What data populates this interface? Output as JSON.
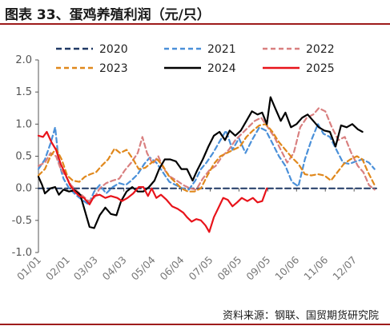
{
  "header": {
    "title": "图表 33、蛋鸡养殖利润（元/只）"
  },
  "footer": {
    "source": "资料来源：钢联、国贸期货研究院"
  },
  "chart_data": {
    "type": "line",
    "title": "图表 33、蛋鸡养殖利润（元/只）",
    "xlabel": "",
    "ylabel": "",
    "ylim": [
      -1.0,
      2.0
    ],
    "yticks": [
      "-1.0",
      "-0.5",
      "0.0",
      "0.5",
      "1.0",
      "1.5",
      "2.0"
    ],
    "xticks": [
      "01/01",
      "02/01",
      "03/03",
      "04/03",
      "05/04",
      "06/04",
      "07/05",
      "08/05",
      "09/05",
      "10/06",
      "11/06",
      "12/07"
    ],
    "xtick_positions": [
      0,
      31,
      61,
      92,
      123,
      154,
      185,
      216,
      247,
      278,
      309,
      340
    ],
    "x_max": 364,
    "grid": false,
    "legend_position": "top",
    "series": [
      {
        "name": "2020",
        "color": "#1f3864",
        "dash": "7,4",
        "points": [
          [
            0,
            0
          ],
          [
            364,
            0
          ]
        ]
      },
      {
        "name": "2021",
        "color": "#4a90d9",
        "dash": "6,4",
        "points": [
          [
            0,
            0.3
          ],
          [
            7,
            0.45
          ],
          [
            13,
            0.7
          ],
          [
            18,
            0.95
          ],
          [
            22,
            0.4
          ],
          [
            27,
            0.15
          ],
          [
            33,
            0.0
          ],
          [
            40,
            -0.1
          ],
          [
            47,
            -0.18
          ],
          [
            54,
            -0.25
          ],
          [
            60,
            -0.05
          ],
          [
            66,
            0.05
          ],
          [
            73,
            -0.08
          ],
          [
            80,
            0.02
          ],
          [
            87,
            0.08
          ],
          [
            94,
            0.05
          ],
          [
            100,
            0.12
          ],
          [
            107,
            0.22
          ],
          [
            114,
            0.38
          ],
          [
            120,
            0.48
          ],
          [
            127,
            0.4
          ],
          [
            134,
            0.25
          ],
          [
            141,
            0.1
          ],
          [
            148,
            0.05
          ],
          [
            155,
            0.0
          ],
          [
            162,
            -0.02
          ],
          [
            169,
            0.12
          ],
          [
            175,
            0.3
          ],
          [
            181,
            0.4
          ],
          [
            188,
            0.55
          ],
          [
            196,
            0.75
          ],
          [
            202,
            0.9
          ],
          [
            209,
            0.6
          ],
          [
            216,
            0.78
          ],
          [
            223,
            0.55
          ],
          [
            230,
            0.75
          ],
          [
            238,
            0.95
          ],
          [
            245,
            0.9
          ],
          [
            252,
            0.7
          ],
          [
            259,
            0.5
          ],
          [
            266,
            0.35
          ],
          [
            273,
            0.1
          ],
          [
            280,
            0.03
          ],
          [
            287,
            0.45
          ],
          [
            294,
            0.75
          ],
          [
            301,
            1.0
          ],
          [
            307,
            0.85
          ],
          [
            314,
            0.8
          ],
          [
            321,
            0.6
          ],
          [
            328,
            0.4
          ],
          [
            335,
            0.38
          ],
          [
            342,
            0.42
          ],
          [
            349,
            0.45
          ],
          [
            356,
            0.4
          ],
          [
            362,
            0.3
          ]
        ]
      },
      {
        "name": "2022",
        "color": "#d98080",
        "dash": "6,4",
        "points": [
          [
            0,
            0.35
          ],
          [
            7,
            0.4
          ],
          [
            13,
            0.55
          ],
          [
            19,
            0.5
          ],
          [
            24,
            0.3
          ],
          [
            29,
            0.2
          ],
          [
            35,
            0.05
          ],
          [
            42,
            -0.05
          ],
          [
            48,
            -0.12
          ],
          [
            54,
            -0.2
          ],
          [
            60,
            -0.15
          ],
          [
            66,
            0.0
          ],
          [
            73,
            0.08
          ],
          [
            80,
            0.12
          ],
          [
            87,
            0.15
          ],
          [
            93,
            0.28
          ],
          [
            100,
            0.4
          ],
          [
            107,
            0.55
          ],
          [
            112,
            0.8
          ],
          [
            117,
            0.55
          ],
          [
            123,
            0.38
          ],
          [
            129,
            0.5
          ],
          [
            135,
            0.3
          ],
          [
            142,
            0.18
          ],
          [
            149,
            0.12
          ],
          [
            156,
            0.05
          ],
          [
            163,
            0.0
          ],
          [
            170,
            -0.02
          ],
          [
            177,
            0.15
          ],
          [
            184,
            0.28
          ],
          [
            191,
            0.35
          ],
          [
            198,
            0.5
          ],
          [
            205,
            0.6
          ],
          [
            212,
            0.75
          ],
          [
            219,
            0.85
          ],
          [
            226,
            0.95
          ],
          [
            233,
            1.05
          ],
          [
            240,
            1.1
          ],
          [
            247,
            0.95
          ],
          [
            254,
            0.8
          ],
          [
            261,
            0.6
          ],
          [
            268,
            0.4
          ],
          [
            275,
            0.55
          ],
          [
            282,
            0.95
          ],
          [
            289,
            1.1
          ],
          [
            296,
            1.15
          ],
          [
            302,
            1.25
          ],
          [
            309,
            1.2
          ],
          [
            316,
            0.95
          ],
          [
            323,
            0.75
          ],
          [
            330,
            0.8
          ],
          [
            337,
            0.55
          ],
          [
            344,
            0.35
          ],
          [
            350,
            0.25
          ],
          [
            356,
            0.05
          ],
          [
            362,
            -0.02
          ]
        ]
      },
      {
        "name": "2023",
        "color": "#e0881c",
        "dash": "6,4",
        "points": [
          [
            0,
            0.2
          ],
          [
            7,
            0.3
          ],
          [
            13,
            0.5
          ],
          [
            19,
            0.62
          ],
          [
            25,
            0.45
          ],
          [
            31,
            0.2
          ],
          [
            37,
            0.12
          ],
          [
            44,
            0.1
          ],
          [
            50,
            0.18
          ],
          [
            56,
            0.22
          ],
          [
            62,
            0.25
          ],
          [
            68,
            0.35
          ],
          [
            75,
            0.45
          ],
          [
            82,
            0.62
          ],
          [
            88,
            0.55
          ],
          [
            95,
            0.6
          ],
          [
            102,
            0.45
          ],
          [
            108,
            0.3
          ],
          [
            115,
            0.32
          ],
          [
            122,
            0.4
          ],
          [
            128,
            0.45
          ],
          [
            134,
            0.35
          ],
          [
            140,
            0.2
          ],
          [
            147,
            0.1
          ],
          [
            154,
            0.0
          ],
          [
            161,
            -0.05
          ],
          [
            168,
            -0.05
          ],
          [
            175,
            0.0
          ],
          [
            182,
            0.2
          ],
          [
            189,
            0.38
          ],
          [
            196,
            0.5
          ],
          [
            203,
            0.55
          ],
          [
            210,
            0.6
          ],
          [
            217,
            0.65
          ],
          [
            224,
            0.8
          ],
          [
            231,
            0.9
          ],
          [
            238,
            0.98
          ],
          [
            245,
            1.0
          ],
          [
            252,
            0.88
          ],
          [
            259,
            0.72
          ],
          [
            266,
            0.6
          ],
          [
            273,
            0.48
          ],
          [
            280,
            0.38
          ],
          [
            287,
            0.22
          ],
          [
            294,
            0.2
          ],
          [
            301,
            0.22
          ],
          [
            308,
            0.2
          ],
          [
            315,
            0.12
          ],
          [
            322,
            0.25
          ],
          [
            329,
            0.38
          ],
          [
            336,
            0.45
          ],
          [
            343,
            0.5
          ],
          [
            349,
            0.45
          ],
          [
            355,
            0.25
          ],
          [
            362,
            0.05
          ]
        ]
      },
      {
        "name": "2024",
        "color": "#000000",
        "dash": "",
        "points": [
          [
            0,
            0.18
          ],
          [
            4,
            0.05
          ],
          [
            7,
            -0.08
          ],
          [
            13,
            0.0
          ],
          [
            18,
            0.02
          ],
          [
            22,
            -0.1
          ],
          [
            27,
            -0.02
          ],
          [
            33,
            -0.05
          ],
          [
            39,
            -0.03
          ],
          [
            45,
            -0.1
          ],
          [
            50,
            -0.35
          ],
          [
            55,
            -0.6
          ],
          [
            60,
            -0.62
          ],
          [
            66,
            -0.42
          ],
          [
            72,
            -0.3
          ],
          [
            78,
            -0.4
          ],
          [
            84,
            -0.42
          ],
          [
            89,
            -0.2
          ],
          [
            95,
            -0.05
          ],
          [
            101,
            0.02
          ],
          [
            107,
            -0.05
          ],
          [
            113,
            -0.05
          ],
          [
            119,
            0.02
          ],
          [
            125,
            0.12
          ],
          [
            130,
            0.3
          ],
          [
            136,
            0.45
          ],
          [
            142,
            0.45
          ],
          [
            148,
            0.42
          ],
          [
            154,
            0.3
          ],
          [
            160,
            0.3
          ],
          [
            166,
            0.12
          ],
          [
            171,
            0.28
          ],
          [
            177,
            0.45
          ],
          [
            183,
            0.65
          ],
          [
            189,
            0.82
          ],
          [
            195,
            0.88
          ],
          [
            201,
            0.75
          ],
          [
            206,
            0.9
          ],
          [
            212,
            0.82
          ],
          [
            218,
            0.9
          ],
          [
            224,
            1.05
          ],
          [
            230,
            1.2
          ],
          [
            236,
            1.15
          ],
          [
            241,
            1.18
          ],
          [
            246,
            1.0
          ],
          [
            250,
            1.42
          ],
          [
            255,
            1.25
          ],
          [
            261,
            1.05
          ],
          [
            266,
            1.18
          ],
          [
            272,
            0.95
          ],
          [
            278,
            1.0
          ],
          [
            284,
            1.1
          ],
          [
            290,
            1.15
          ],
          [
            296,
            1.05
          ],
          [
            302,
            0.95
          ],
          [
            308,
            0.9
          ],
          [
            314,
            0.88
          ],
          [
            320,
            0.65
          ],
          [
            326,
            0.98
          ],
          [
            332,
            0.95
          ],
          [
            338,
            1.0
          ],
          [
            344,
            0.92
          ],
          [
            349,
            0.88
          ]
        ]
      },
      {
        "name": "2025",
        "color": "#e8131a",
        "dash": "",
        "points": [
          [
            0,
            0.82
          ],
          [
            5,
            0.8
          ],
          [
            9,
            0.88
          ],
          [
            14,
            0.72
          ],
          [
            19,
            0.6
          ],
          [
            24,
            0.38
          ],
          [
            29,
            0.22
          ],
          [
            34,
            0.05
          ],
          [
            39,
            -0.05
          ],
          [
            44,
            -0.12
          ],
          [
            49,
            -0.15
          ],
          [
            55,
            -0.25
          ],
          [
            60,
            -0.12
          ],
          [
            66,
            -0.1
          ],
          [
            72,
            -0.15
          ],
          [
            78,
            -0.12
          ],
          [
            85,
            -0.15
          ],
          [
            90,
            -0.2
          ],
          [
            96,
            -0.15
          ],
          [
            102,
            -0.08
          ],
          [
            108,
            0.02
          ],
          [
            113,
            0.02
          ],
          [
            118,
            -0.12
          ],
          [
            122,
            0.0
          ],
          [
            127,
            -0.15
          ],
          [
            132,
            -0.1
          ],
          [
            138,
            -0.18
          ],
          [
            144,
            -0.28
          ],
          [
            150,
            -0.32
          ],
          [
            156,
            -0.38
          ],
          [
            160,
            -0.45
          ],
          [
            165,
            -0.52
          ],
          [
            170,
            -0.48
          ],
          [
            175,
            -0.5
          ],
          [
            180,
            -0.58
          ],
          [
            184,
            -0.68
          ],
          [
            189,
            -0.45
          ],
          [
            194,
            -0.3
          ],
          [
            199,
            -0.15
          ],
          [
            204,
            -0.18
          ],
          [
            209,
            -0.28
          ],
          [
            214,
            -0.22
          ],
          [
            219,
            -0.15
          ],
          [
            225,
            -0.2
          ],
          [
            231,
            -0.15
          ],
          [
            236,
            -0.22
          ],
          [
            241,
            -0.2
          ],
          [
            246,
            0.0
          ]
        ]
      }
    ]
  }
}
